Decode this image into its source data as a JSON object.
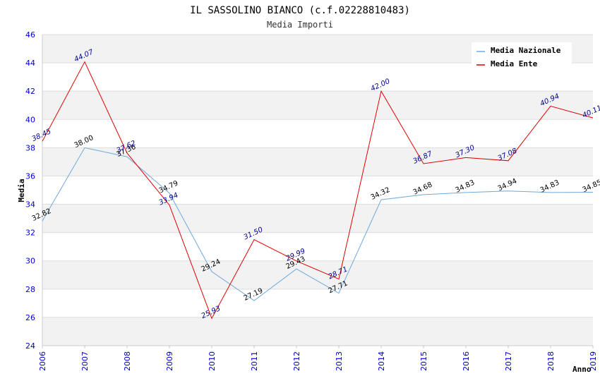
{
  "chart_data": {
    "type": "line",
    "title": "IL SASSOLINO BIANCO (c.f.02228810483)",
    "subtitle": "Media Importi",
    "xlabel": "Anno",
    "ylabel": "Media",
    "ylim": [
      24,
      46
    ],
    "yticks": [
      "24",
      "26",
      "28",
      "30",
      "32",
      "34",
      "36",
      "38",
      "40",
      "42",
      "44",
      "46"
    ],
    "categories": [
      "2006",
      "2007",
      "2008",
      "2009",
      "2010",
      "2011",
      "2012",
      "2013",
      "2014",
      "2015",
      "2016",
      "2017",
      "2018",
      "2019"
    ],
    "legend_position": "top-right",
    "series": [
      {
        "name": "Media Nazionale",
        "color": "#6fa8dc",
        "values": [
          32.82,
          38.0,
          37.36,
          34.79,
          29.24,
          27.19,
          29.43,
          27.71,
          34.32,
          34.68,
          34.83,
          34.94,
          34.83,
          34.85
        ],
        "labels": [
          "32.82",
          "38.00",
          "37.36",
          "34.79",
          "29.24",
          "27.19",
          "29.43",
          "27.71",
          "34.32",
          "34.68",
          "34.83",
          "34.94",
          "34.83",
          "34.85"
        ]
      },
      {
        "name": "Media Ente",
        "color": "#e00000",
        "values": [
          38.45,
          44.07,
          37.62,
          33.94,
          25.93,
          31.5,
          29.99,
          28.71,
          42.0,
          36.87,
          37.3,
          37.08,
          40.94,
          40.11
        ],
        "labels": [
          "38.45",
          "44.07",
          "37.62",
          "33.94",
          "25.93",
          "31.50",
          "29.99",
          "28.71",
          "42.00",
          "36.87",
          "37.30",
          "37.08",
          "40.94",
          "40.11"
        ]
      }
    ]
  }
}
